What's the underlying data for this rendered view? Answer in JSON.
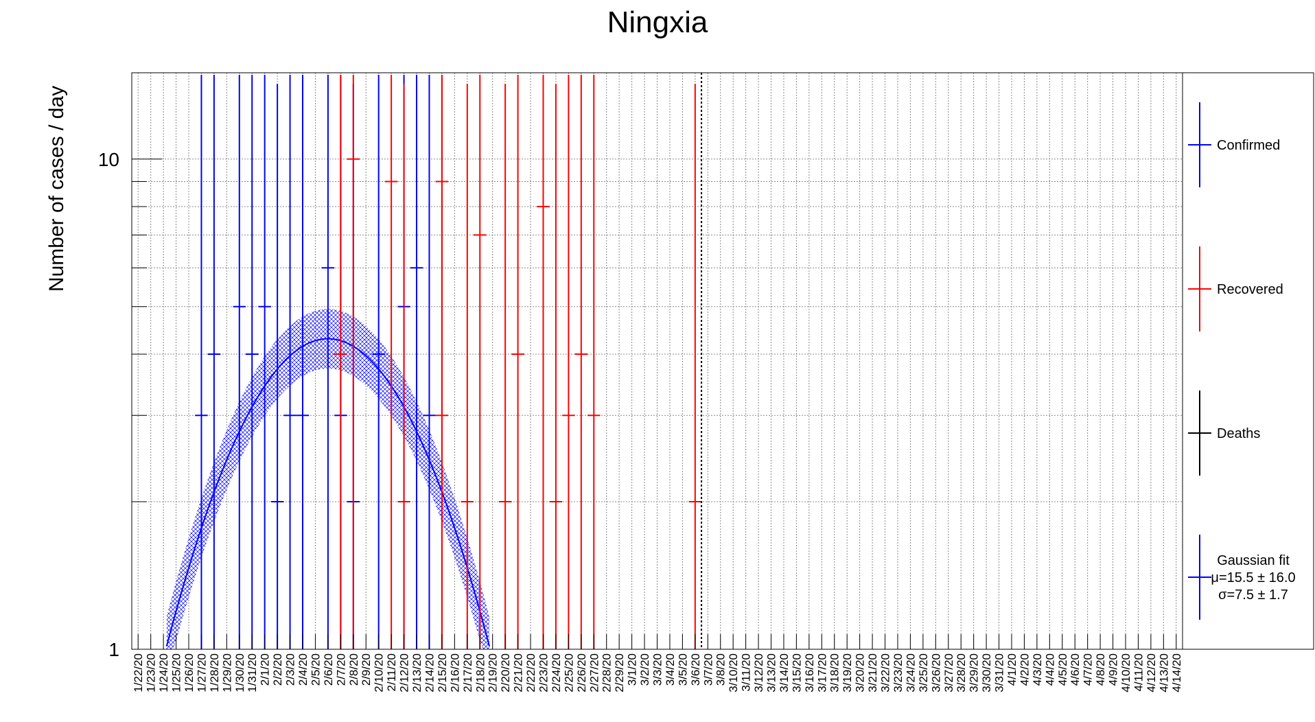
{
  "chart_data": {
    "type": "scatter",
    "title": "Ningxia",
    "xlabel": "",
    "ylabel": "Number of cases / day",
    "yscale": "log",
    "ylim": [
      1,
      15
    ],
    "y_ticks": [
      {
        "value": 1,
        "label": "1"
      },
      {
        "value": 10,
        "label": "10"
      }
    ],
    "grid": true,
    "legend_position": "right",
    "marker_date": "3/6/20",
    "categories": [
      "1/22/20",
      "1/23/20",
      "1/24/20",
      "1/25/20",
      "1/26/20",
      "1/27/20",
      "1/28/20",
      "1/29/20",
      "1/30/20",
      "1/31/20",
      "2/1/20",
      "2/2/20",
      "2/3/20",
      "2/4/20",
      "2/5/20",
      "2/6/20",
      "2/7/20",
      "2/8/20",
      "2/9/20",
      "2/10/20",
      "2/11/20",
      "2/12/20",
      "2/13/20",
      "2/14/20",
      "2/15/20",
      "2/16/20",
      "2/17/20",
      "2/18/20",
      "2/19/20",
      "2/20/20",
      "2/21/20",
      "2/22/20",
      "2/23/20",
      "2/24/20",
      "2/25/20",
      "2/26/20",
      "2/27/20",
      "2/28/20",
      "2/29/20",
      "3/1/20",
      "3/2/20",
      "3/3/20",
      "3/4/20",
      "3/5/20",
      "3/6/20",
      "3/7/20",
      "3/8/20",
      "3/10/20",
      "3/11/20",
      "3/12/20",
      "3/13/20",
      "3/14/20",
      "3/15/20",
      "3/16/20",
      "3/17/20",
      "3/18/20",
      "3/19/20",
      "3/20/20",
      "3/21/20",
      "3/22/20",
      "3/23/20",
      "3/24/20",
      "3/25/20",
      "3/26/20",
      "3/27/20",
      "3/28/20",
      "3/29/20",
      "3/30/20",
      "3/31/20",
      "4/1/20",
      "4/2/20",
      "4/3/20",
      "4/4/20",
      "4/5/20",
      "4/6/20",
      "4/7/20",
      "4/8/20",
      "4/9/20",
      "4/10/20",
      "4/11/20",
      "4/12/20",
      "4/13/20",
      "4/14/20"
    ],
    "series": [
      {
        "name": "Confirmed",
        "color": "#0000ff",
        "points": [
          {
            "x": "1/27/20",
            "y": 3
          },
          {
            "x": "1/28/20",
            "y": 4
          },
          {
            "x": "1/30/20",
            "y": 5
          },
          {
            "x": "1/31/20",
            "y": 4
          },
          {
            "x": "2/1/20",
            "y": 5
          },
          {
            "x": "2/2/20",
            "y": 2
          },
          {
            "x": "2/3/20",
            "y": 3
          },
          {
            "x": "2/4/20",
            "y": 3
          },
          {
            "x": "2/6/20",
            "y": 6
          },
          {
            "x": "2/7/20",
            "y": 3
          },
          {
            "x": "2/8/20",
            "y": 2
          },
          {
            "x": "2/10/20",
            "y": 4
          },
          {
            "x": "2/12/20",
            "y": 5
          },
          {
            "x": "2/13/20",
            "y": 6
          },
          {
            "x": "2/14/20",
            "y": 3
          }
        ]
      },
      {
        "name": "Recovered",
        "color": "#ff0000",
        "points": [
          {
            "x": "2/7/20",
            "y": 4
          },
          {
            "x": "2/8/20",
            "y": 10
          },
          {
            "x": "2/11/20",
            "y": 9
          },
          {
            "x": "2/12/20",
            "y": 2
          },
          {
            "x": "2/15/20",
            "y": 9
          },
          {
            "x": "2/15/20",
            "y": 3
          },
          {
            "x": "2/17/20",
            "y": 2
          },
          {
            "x": "2/18/20",
            "y": 7
          },
          {
            "x": "2/20/20",
            "y": 2
          },
          {
            "x": "2/21/20",
            "y": 4
          },
          {
            "x": "2/23/20",
            "y": 8
          },
          {
            "x": "2/24/20",
            "y": 2
          },
          {
            "x": "2/25/20",
            "y": 3
          },
          {
            "x": "2/26/20",
            "y": 4
          },
          {
            "x": "2/27/20",
            "y": 3
          },
          {
            "x": "3/6/20",
            "y": 2
          }
        ]
      },
      {
        "name": "Deaths",
        "color": "#000000",
        "points": []
      },
      {
        "name": "Gaussian fit",
        "color": "#0000ff",
        "mu": 15.5,
        "sigma": 7.5,
        "amplitude": 4.3
      }
    ],
    "legend": [
      {
        "name": "Confirmed",
        "color": "#0000ff",
        "lines": [
          "Confirmed"
        ]
      },
      {
        "name": "Recovered",
        "color": "#ff0000",
        "lines": [
          "Recovered"
        ]
      },
      {
        "name": "Deaths",
        "color": "#000000",
        "lines": [
          "Deaths"
        ]
      },
      {
        "name": "Gaussian fit",
        "color": "#0000ff",
        "lines": [
          "Gaussian fit",
          "μ=15.5 ± 16.0",
          "σ=7.5 ± 1.7"
        ]
      }
    ]
  }
}
